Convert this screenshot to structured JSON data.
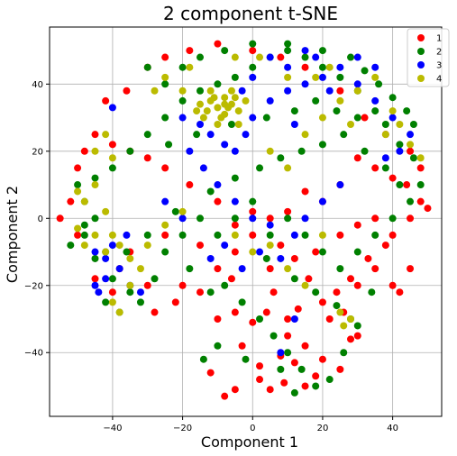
{
  "chart_data": {
    "type": "scatter",
    "title": "2 component t-SNE",
    "xlabel": "Component 1",
    "ylabel": "Component 2",
    "xlim": [
      -58,
      54
    ],
    "ylim": [
      -59,
      57
    ],
    "xticks": [
      -40,
      -20,
      0,
      20,
      40
    ],
    "yticks": [
      -40,
      -20,
      0,
      20,
      40
    ],
    "grid": true,
    "legend_position": "top-right",
    "series": [
      {
        "name": "1",
        "color": "#ff0000",
        "points": [
          [
            -8,
            -53
          ],
          [
            -12,
            -46
          ],
          [
            -5,
            -51
          ],
          [
            2,
            -48
          ],
          [
            5,
            -51
          ],
          [
            9,
            -49
          ],
          [
            15,
            -50
          ],
          [
            18,
            -47
          ],
          [
            25,
            -45
          ],
          [
            20,
            -42
          ],
          [
            12,
            -43
          ],
          [
            8,
            -41
          ],
          [
            28,
            -36
          ],
          [
            30,
            -35
          ],
          [
            -10,
            -30
          ],
          [
            -5,
            -28
          ],
          [
            0,
            -31
          ],
          [
            4,
            -28
          ],
          [
            10,
            -30
          ],
          [
            13,
            -27
          ],
          [
            20,
            -25
          ],
          [
            24,
            -22
          ],
          [
            30,
            -20
          ],
          [
            28,
            -18
          ],
          [
            35,
            -15
          ],
          [
            40,
            -20
          ],
          [
            42,
            -22
          ],
          [
            45,
            -15
          ],
          [
            -20,
            -20
          ],
          [
            -30,
            -20
          ],
          [
            -40,
            -22
          ],
          [
            -45,
            -18
          ],
          [
            -38,
            -15
          ],
          [
            -35,
            -10
          ],
          [
            -25,
            -5
          ],
          [
            -15,
            -8
          ],
          [
            -10,
            -15
          ],
          [
            -5,
            -10
          ],
          [
            0,
            -5
          ],
          [
            5,
            -15
          ],
          [
            8,
            -8
          ],
          [
            12,
            -12
          ],
          [
            18,
            -10
          ],
          [
            25,
            -5
          ],
          [
            30,
            -2
          ],
          [
            35,
            0
          ],
          [
            40,
            -5
          ],
          [
            45,
            0
          ],
          [
            48,
            5
          ],
          [
            50,
            3
          ],
          [
            44,
            10
          ],
          [
            40,
            12
          ],
          [
            35,
            15
          ],
          [
            30,
            18
          ],
          [
            25,
            10
          ],
          [
            20,
            5
          ],
          [
            15,
            8
          ],
          [
            10,
            2
          ],
          [
            5,
            0
          ],
          [
            0,
            2
          ],
          [
            -5,
            -2
          ],
          [
            -10,
            5
          ],
          [
            -18,
            10
          ],
          [
            -25,
            15
          ],
          [
            -30,
            18
          ],
          [
            -35,
            20
          ],
          [
            -40,
            22
          ],
          [
            -45,
            25
          ],
          [
            -48,
            20
          ],
          [
            -50,
            15
          ],
          [
            -52,
            5
          ],
          [
            -55,
            0
          ],
          [
            -50,
            -5
          ],
          [
            -42,
            35
          ],
          [
            -36,
            38
          ],
          [
            -30,
            45
          ],
          [
            -25,
            48
          ],
          [
            -18,
            50
          ],
          [
            -10,
            52
          ],
          [
            0,
            50
          ],
          [
            8,
            48
          ],
          [
            15,
            45
          ],
          [
            25,
            38
          ],
          [
            32,
            30
          ],
          [
            38,
            25
          ],
          [
            45,
            20
          ],
          [
            48,
            15
          ],
          [
            -28,
            -28
          ],
          [
            -22,
            -25
          ],
          [
            -15,
            -22
          ],
          [
            -3,
            -38
          ],
          [
            2,
            -44
          ],
          [
            10,
            -35
          ],
          [
            15,
            -38
          ],
          [
            22,
            -30
          ],
          [
            26,
            -28
          ],
          [
            33,
            -12
          ],
          [
            38,
            -8
          ],
          [
            16,
            -18
          ],
          [
            6,
            -22
          ],
          [
            -6,
            -18
          ]
        ]
      },
      {
        "name": "2",
        "color": "#008000",
        "points": [
          [
            -50,
            10
          ],
          [
            -48,
            5
          ],
          [
            -45,
            0
          ],
          [
            -48,
            -5
          ],
          [
            -52,
            -8
          ],
          [
            -45,
            -12
          ],
          [
            -40,
            -18
          ],
          [
            -42,
            -25
          ],
          [
            -38,
            -28
          ],
          [
            -32,
            -25
          ],
          [
            -28,
            -18
          ],
          [
            -25,
            -10
          ],
          [
            -20,
            -5
          ],
          [
            -15,
            0
          ],
          [
            -10,
            -5
          ],
          [
            -5,
            0
          ],
          [
            0,
            5
          ],
          [
            5,
            -5
          ],
          [
            10,
            0
          ],
          [
            15,
            -5
          ],
          [
            20,
            -10
          ],
          [
            25,
            -15
          ],
          [
            30,
            -10
          ],
          [
            35,
            -5
          ],
          [
            40,
            0
          ],
          [
            45,
            5
          ],
          [
            48,
            10
          ],
          [
            46,
            18
          ],
          [
            42,
            22
          ],
          [
            38,
            28
          ],
          [
            35,
            32
          ],
          [
            30,
            38
          ],
          [
            25,
            42
          ],
          [
            20,
            45
          ],
          [
            15,
            48
          ],
          [
            10,
            50
          ],
          [
            5,
            48
          ],
          [
            0,
            45
          ],
          [
            -5,
            42
          ],
          [
            -10,
            40
          ],
          [
            -15,
            38
          ],
          [
            -20,
            35
          ],
          [
            -25,
            30
          ],
          [
            -30,
            25
          ],
          [
            -35,
            20
          ],
          [
            -40,
            15
          ],
          [
            -45,
            12
          ],
          [
            -30,
            45
          ],
          [
            -25,
            40
          ],
          [
            -20,
            45
          ],
          [
            -15,
            48
          ],
          [
            -8,
            50
          ],
          [
            0,
            52
          ],
          [
            10,
            52
          ],
          [
            20,
            50
          ],
          [
            28,
            48
          ],
          [
            32,
            44
          ],
          [
            36,
            40
          ],
          [
            40,
            36
          ],
          [
            44,
            32
          ],
          [
            46,
            28
          ],
          [
            -36,
            -10
          ],
          [
            -30,
            -5
          ],
          [
            -22,
            2
          ],
          [
            -12,
            8
          ],
          [
            -5,
            12
          ],
          [
            2,
            15
          ],
          [
            8,
            18
          ],
          [
            14,
            20
          ],
          [
            20,
            22
          ],
          [
            26,
            25
          ],
          [
            32,
            20
          ],
          [
            38,
            15
          ],
          [
            42,
            10
          ],
          [
            -8,
            -20
          ],
          [
            -3,
            -25
          ],
          [
            2,
            -30
          ],
          [
            6,
            -35
          ],
          [
            10,
            -40
          ],
          [
            14,
            -45
          ],
          [
            18,
            -50
          ],
          [
            22,
            -48
          ],
          [
            26,
            -40
          ],
          [
            30,
            -32
          ],
          [
            -10,
            -38
          ],
          [
            -14,
            -42
          ],
          [
            -2,
            -42
          ],
          [
            8,
            -45
          ],
          [
            12,
            -52
          ],
          [
            -35,
            -22
          ],
          [
            -42,
            -10
          ],
          [
            -48,
            -2
          ],
          [
            -18,
            -15
          ],
          [
            -12,
            -22
          ],
          [
            4,
            -12
          ],
          [
            12,
            -18
          ],
          [
            18,
            -22
          ],
          [
            24,
            -26
          ],
          [
            28,
            -30
          ],
          [
            34,
            -22
          ],
          [
            -24,
            22
          ],
          [
            -16,
            25
          ],
          [
            -6,
            28
          ],
          [
            4,
            30
          ],
          [
            12,
            32
          ],
          [
            18,
            35
          ],
          [
            24,
            32
          ],
          [
            30,
            30
          ]
        ]
      },
      {
        "name": "3",
        "color": "#0000ff",
        "points": [
          [
            -45,
            -10
          ],
          [
            -42,
            -12
          ],
          [
            -40,
            -8
          ],
          [
            -38,
            -15
          ],
          [
            -35,
            -20
          ],
          [
            -32,
            -22
          ],
          [
            -36,
            -5
          ],
          [
            -42,
            -18
          ],
          [
            -44,
            -22
          ],
          [
            -20,
            30
          ],
          [
            -15,
            28
          ],
          [
            -12,
            25
          ],
          [
            -8,
            22
          ],
          [
            -5,
            20
          ],
          [
            -2,
            25
          ],
          [
            0,
            30
          ],
          [
            5,
            35
          ],
          [
            10,
            38
          ],
          [
            15,
            40
          ],
          [
            20,
            42
          ],
          [
            25,
            45
          ],
          [
            30,
            40
          ],
          [
            35,
            35
          ],
          [
            40,
            30
          ],
          [
            45,
            25
          ],
          [
            42,
            20
          ],
          [
            38,
            18
          ],
          [
            -10,
            10
          ],
          [
            -5,
            5
          ],
          [
            0,
            0
          ],
          [
            5,
            -2
          ],
          [
            -8,
            -8
          ],
          [
            -12,
            -12
          ],
          [
            -3,
            -15
          ],
          [
            2,
            -10
          ],
          [
            8,
            -12
          ],
          [
            12,
            -5
          ],
          [
            15,
            0
          ],
          [
            20,
            5
          ],
          [
            25,
            10
          ],
          [
            -14,
            15
          ],
          [
            -18,
            20
          ],
          [
            10,
            45
          ],
          [
            15,
            50
          ],
          [
            5,
            48
          ],
          [
            0,
            42
          ],
          [
            -3,
            38
          ],
          [
            30,
            48
          ],
          [
            18,
            48
          ],
          [
            35,
            45
          ],
          [
            22,
            38
          ],
          [
            12,
            28
          ],
          [
            -25,
            5
          ],
          [
            -20,
            0
          ],
          [
            8,
            -40
          ],
          [
            12,
            -30
          ],
          [
            -40,
            33
          ],
          [
            -45,
            -20
          ]
        ]
      },
      {
        "name": "4",
        "color": "#bbbb00",
        "points": [
          [
            -12,
            35
          ],
          [
            -10,
            33
          ],
          [
            -8,
            31
          ],
          [
            -6,
            34
          ],
          [
            -4,
            32
          ],
          [
            -14,
            30
          ],
          [
            -10,
            28
          ],
          [
            -8,
            36
          ],
          [
            -6,
            38
          ],
          [
            -12,
            38
          ],
          [
            -15,
            34
          ],
          [
            -4,
            28
          ],
          [
            -2,
            35
          ],
          [
            -16,
            32
          ],
          [
            -9,
            30
          ],
          [
            -7,
            33
          ],
          [
            -11,
            36
          ],
          [
            -5,
            36
          ],
          [
            -13,
            32
          ],
          [
            -8,
            34
          ],
          [
            -50,
            -3
          ],
          [
            -48,
            -8
          ],
          [
            -45,
            -5
          ],
          [
            -42,
            -10
          ],
          [
            -40,
            -5
          ],
          [
            -38,
            -8
          ],
          [
            -35,
            -12
          ],
          [
            -32,
            -15
          ],
          [
            -48,
            5
          ],
          [
            -45,
            10
          ],
          [
            -50,
            8
          ],
          [
            -42,
            2
          ],
          [
            -35,
            -20
          ],
          [
            -40,
            -25
          ],
          [
            -38,
            -28
          ],
          [
            -30,
            -8
          ],
          [
            -25,
            -2
          ],
          [
            -20,
            2
          ],
          [
            -45,
            20
          ],
          [
            -42,
            25
          ],
          [
            -40,
            18
          ],
          [
            5,
            20
          ],
          [
            10,
            15
          ],
          [
            15,
            25
          ],
          [
            20,
            30
          ],
          [
            25,
            35
          ],
          [
            30,
            38
          ],
          [
            35,
            42
          ],
          [
            40,
            32
          ],
          [
            45,
            22
          ],
          [
            48,
            18
          ],
          [
            42,
            28
          ],
          [
            38,
            25
          ],
          [
            28,
            28
          ],
          [
            22,
            45
          ],
          [
            18,
            42
          ],
          [
            10,
            42
          ],
          [
            2,
            48
          ],
          [
            -5,
            48
          ],
          [
            -18,
            45
          ],
          [
            -25,
            42
          ],
          [
            -28,
            38
          ],
          [
            -20,
            38
          ],
          [
            28,
            -30
          ],
          [
            26,
            -32
          ],
          [
            25,
            -28
          ],
          [
            0,
            -10
          ],
          [
            5,
            -8
          ],
          [
            -5,
            -5
          ],
          [
            10,
            -15
          ],
          [
            15,
            -20
          ],
          [
            20,
            -5
          ]
        ]
      }
    ]
  }
}
